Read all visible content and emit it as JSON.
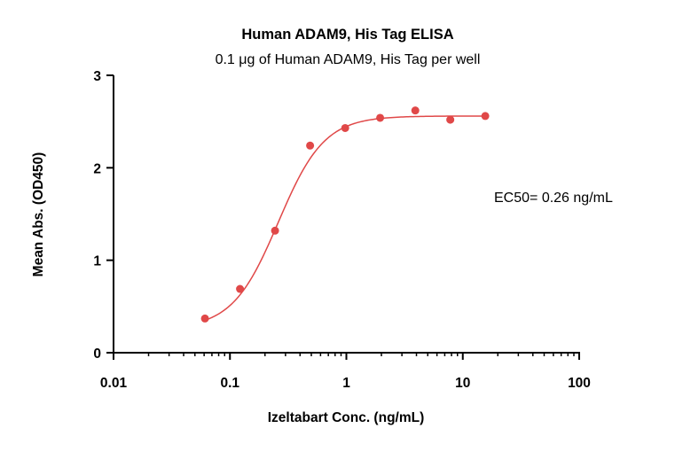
{
  "chart_data": {
    "type": "scatter",
    "title": "Human ADAM9, His Tag ELISA",
    "subtitle": "0.1 μg of Human ADAM9, His Tag per well",
    "xlabel": "Izeltabart Conc. (ng/mL)",
    "ylabel": "Mean Abs. (OD450)",
    "x_scale": "log",
    "xlim": [
      0.01,
      100
    ],
    "ylim": [
      0,
      3
    ],
    "x_ticks": [
      0.01,
      0.1,
      1,
      10,
      100
    ],
    "x_tick_labels": [
      "0.01",
      "0.1",
      "1",
      "10",
      "100"
    ],
    "y_ticks": [
      0,
      1,
      2,
      3
    ],
    "y_tick_labels": [
      "0",
      "1",
      "2",
      "3"
    ],
    "grid": false,
    "series": [
      {
        "x": [
          0.061,
          0.122,
          0.244,
          0.488,
          0.977,
          1.95,
          3.91,
          7.81,
          15.6
        ],
        "y": [
          0.37,
          0.69,
          1.32,
          2.24,
          2.43,
          2.54,
          2.62,
          2.52,
          2.56
        ],
        "color": "#e04848",
        "fit": {
          "model": "4PL",
          "bottom": 0.26,
          "top": 2.56,
          "ec50": 0.26,
          "hill": 2.2
        }
      }
    ],
    "annotations": [
      {
        "text": "EC50= 0.26 ng/mL"
      }
    ]
  }
}
